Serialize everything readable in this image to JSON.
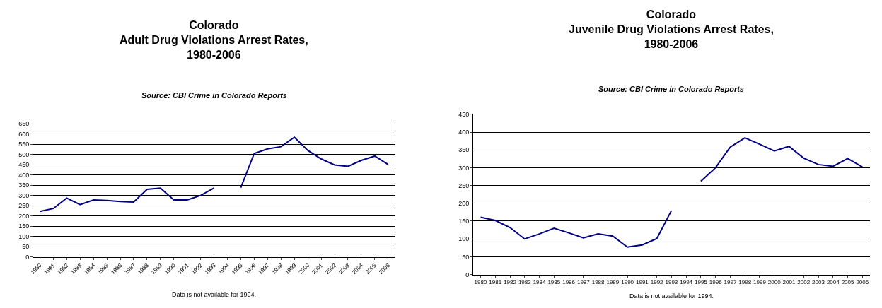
{
  "chart_data": [
    {
      "type": "line",
      "title": "Colorado\nAdult Drug Violations Arrest Rates,\n1980-2006",
      "subtitle": "Source: CBI Crime in Colorado Reports",
      "categories": [
        "1980",
        "1981",
        "1982",
        "1983",
        "1984",
        "1985",
        "1986",
        "1987",
        "1988",
        "1989",
        "1990",
        "1991",
        "1992",
        "1993",
        "1994",
        "1995",
        "1996",
        "1997",
        "1998",
        "1999",
        "2000",
        "2001",
        "2002",
        "2003",
        "2004",
        "2005",
        "2006"
      ],
      "series": [
        {
          "color": "#000080",
          "values": [
            222,
            236,
            287,
            255,
            278,
            275,
            270,
            268,
            330,
            336,
            278,
            278,
            300,
            336,
            null,
            338,
            505,
            527,
            538,
            584,
            520,
            478,
            449,
            442,
            471,
            492,
            451
          ]
        }
      ],
      "ylim": [
        0,
        650
      ],
      "yticks": [
        0,
        50,
        100,
        150,
        200,
        250,
        300,
        350,
        400,
        450,
        500,
        550,
        600,
        650
      ],
      "grid": "y",
      "marker": "none",
      "line_style": "solid",
      "annotations": [
        "Data is not available for 1994."
      ]
    },
    {
      "type": "line",
      "title": "Colorado\nJuvenile Drug Violations Arrest Rates,\n1980-2006",
      "subtitle": "Source: CBI Crime in Colorado Reports",
      "categories": [
        "1980",
        "1981",
        "1982",
        "1983",
        "1984",
        "1985",
        "1986",
        "1987",
        "1988",
        "1989",
        "1990",
        "1991",
        "1992",
        "1993",
        "1994",
        "1995",
        "1996",
        "1997",
        "1998",
        "1999",
        "2000",
        "2001",
        "2002",
        "2003",
        "2004",
        "2005",
        "2006"
      ],
      "series": [
        {
          "color": "#000080",
          "values": [
            161,
            152,
            132,
            100,
            114,
            130,
            117,
            103,
            114,
            108,
            77,
            83,
            101,
            180,
            null,
            262,
            300,
            358,
            384,
            366,
            347,
            360,
            327,
            309,
            304,
            326,
            302
          ]
        }
      ],
      "ylim": [
        0,
        450
      ],
      "yticks": [
        0,
        50,
        100,
        150,
        200,
        250,
        300,
        350,
        400,
        450
      ],
      "grid": "y",
      "marker": "none",
      "line_style": "solid",
      "annotations": [
        "Data is not available for 1994."
      ]
    }
  ]
}
